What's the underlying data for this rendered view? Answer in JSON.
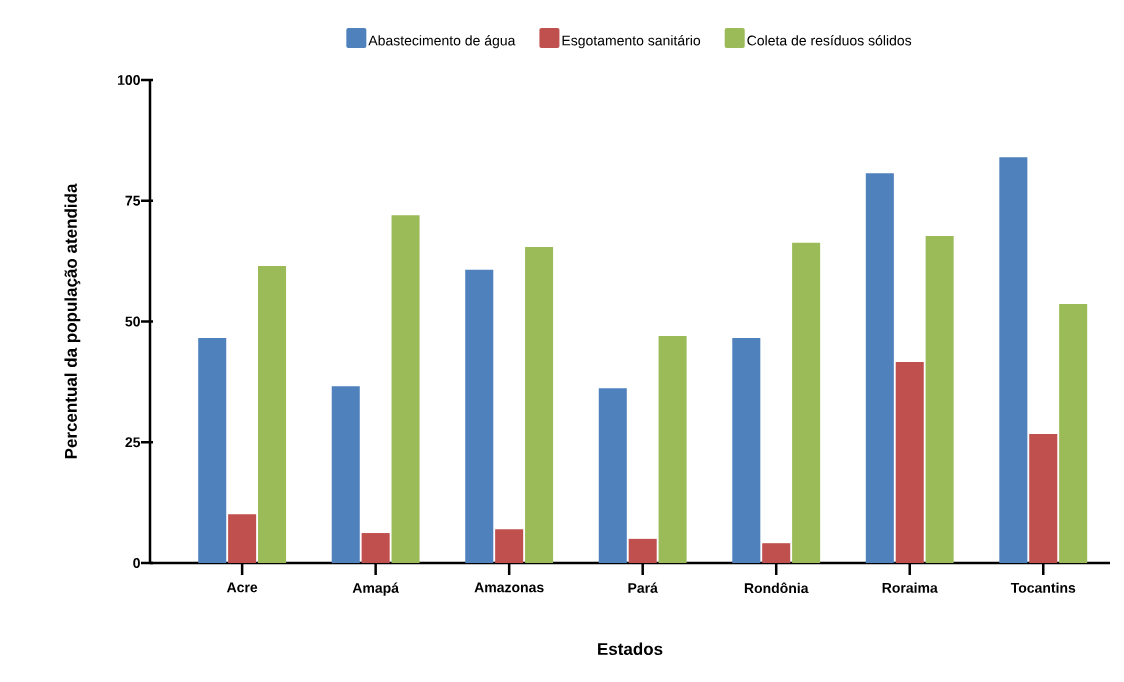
{
  "chart_data": {
    "type": "bar",
    "xlabel": "Estados",
    "ylabel": "Percentual da população atendida",
    "categories": [
      "Acre",
      "Amapá",
      "Amazonas",
      "Pará",
      "Rondônia",
      "Roraima",
      "Tocantins"
    ],
    "series": [
      {
        "name": "Abastecimento de água",
        "color": "#4f81bd",
        "values": [
          46.6,
          36.6,
          60.7,
          36.2,
          46.6,
          80.7,
          84.0
        ]
      },
      {
        "name": "Esgotamento sanitário",
        "color": "#c0504d",
        "values": [
          10.1,
          6.2,
          7.0,
          5.0,
          4.1,
          41.6,
          26.7
        ]
      },
      {
        "name": "Coleta de resíduos sólidos",
        "color": "#9bbb59",
        "values": [
          61.5,
          72.0,
          65.4,
          47.0,
          66.3,
          67.7,
          53.6
        ]
      }
    ],
    "ylim": [
      0,
      100
    ],
    "yticks": [
      0,
      25,
      50,
      75,
      100
    ],
    "grid": false,
    "legend": "top"
  }
}
